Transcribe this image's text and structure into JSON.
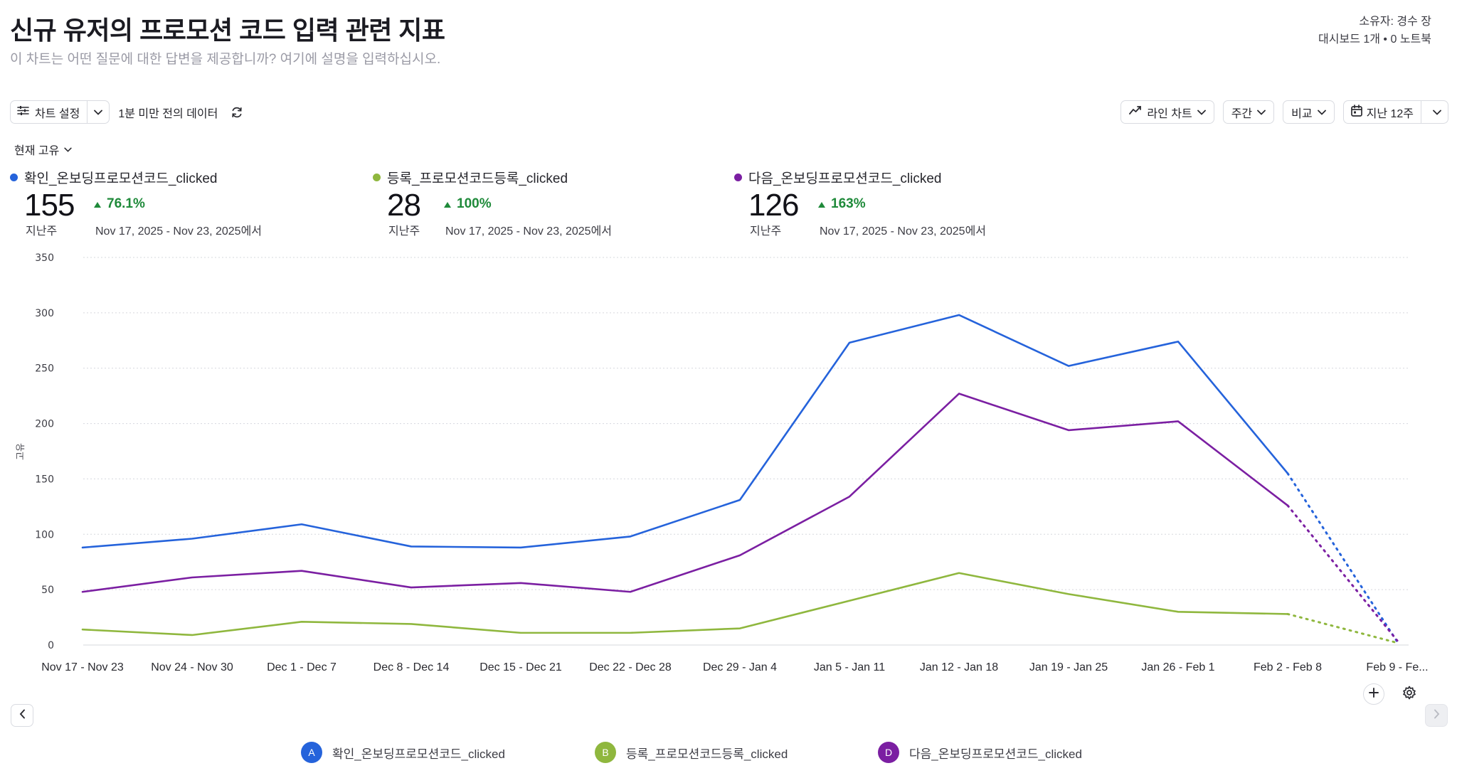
{
  "header": {
    "title": "신규 유저의 프로모션 코드 입력 관련 지표",
    "subtitle": "이 차트는 어떤 질문에 대한 답변을 제공합니까? 여기에 설명을 입력하십시오.",
    "owner": "소유자: 경수 장",
    "usage": "대시보드 1개 • 0 노트북"
  },
  "toolbar": {
    "chart_settings_label": "차트 설정",
    "data_age": "1분 미만 전의 데이터",
    "chart_type_label": "라인 차트",
    "interval_label": "주간",
    "compare_label": "비교",
    "range_label": "지난 12주"
  },
  "metric_mode": "현재 고유",
  "kpis": [
    {
      "name": "확인_온보딩프로모션코드_clicked",
      "value": "155",
      "period": "지난주",
      "change": "76.1%",
      "range": "Nov 17, 2025 - Nov 23, 2025에서",
      "color": "#2563db"
    },
    {
      "name": "등록_프로모션코드등록_clicked",
      "value": "28",
      "period": "지난주",
      "change": "100%",
      "range": "Nov 17, 2025 - Nov 23, 2025에서",
      "color": "#8fb73e"
    },
    {
      "name": "다음_온보딩프로모션코드_clicked",
      "value": "126",
      "period": "지난주",
      "change": "163%",
      "range": "Nov 17, 2025 - Nov 23, 2025에서",
      "color": "#7b1fa2"
    }
  ],
  "chart_data": {
    "type": "line",
    "ylabel": "고유",
    "ylim": [
      0,
      350
    ],
    "yticks": [
      0,
      50,
      100,
      150,
      200,
      250,
      300,
      350
    ],
    "grid": true,
    "categories": [
      "Nov 17 - Nov 23",
      "Nov 24 - Nov 30",
      "Dec 1 - Dec 7",
      "Dec 8 - Dec 14",
      "Dec 15 - Dec 21",
      "Dec 22 - Dec 28",
      "Dec 29 - Jan 4",
      "Jan 5 - Jan 11",
      "Jan 12 - Jan 18",
      "Jan 19 - Jan 25",
      "Jan 26 - Feb 1",
      "Feb 2 - Feb 8",
      "Feb 9 - Fe..."
    ],
    "incomplete_last_period": true,
    "series": [
      {
        "name": "확인_온보딩프로모션코드_clicked",
        "letter": "A",
        "color": "#2563db",
        "values": [
          88,
          96,
          109,
          89,
          88,
          98,
          131,
          273,
          298,
          252,
          274,
          155,
          3
        ]
      },
      {
        "name": "등록_프로모션코드등록_clicked",
        "letter": "B",
        "color": "#8fb73e",
        "values": [
          14,
          9,
          21,
          19,
          11,
          11,
          15,
          40,
          65,
          46,
          30,
          28,
          2
        ]
      },
      {
        "name": "다음_온보딩프로모션코드_clicked",
        "letter": "D",
        "color": "#7b1fa2",
        "values": [
          48,
          61,
          67,
          52,
          56,
          48,
          81,
          134,
          227,
          194,
          202,
          126,
          4
        ]
      }
    ]
  },
  "icons": {
    "settings": "sliders-icon",
    "refresh": "refresh-icon",
    "chart_type": "line-chart-icon",
    "calendar": "calendar-icon",
    "add": "plus-icon",
    "gear": "gear-icon"
  }
}
